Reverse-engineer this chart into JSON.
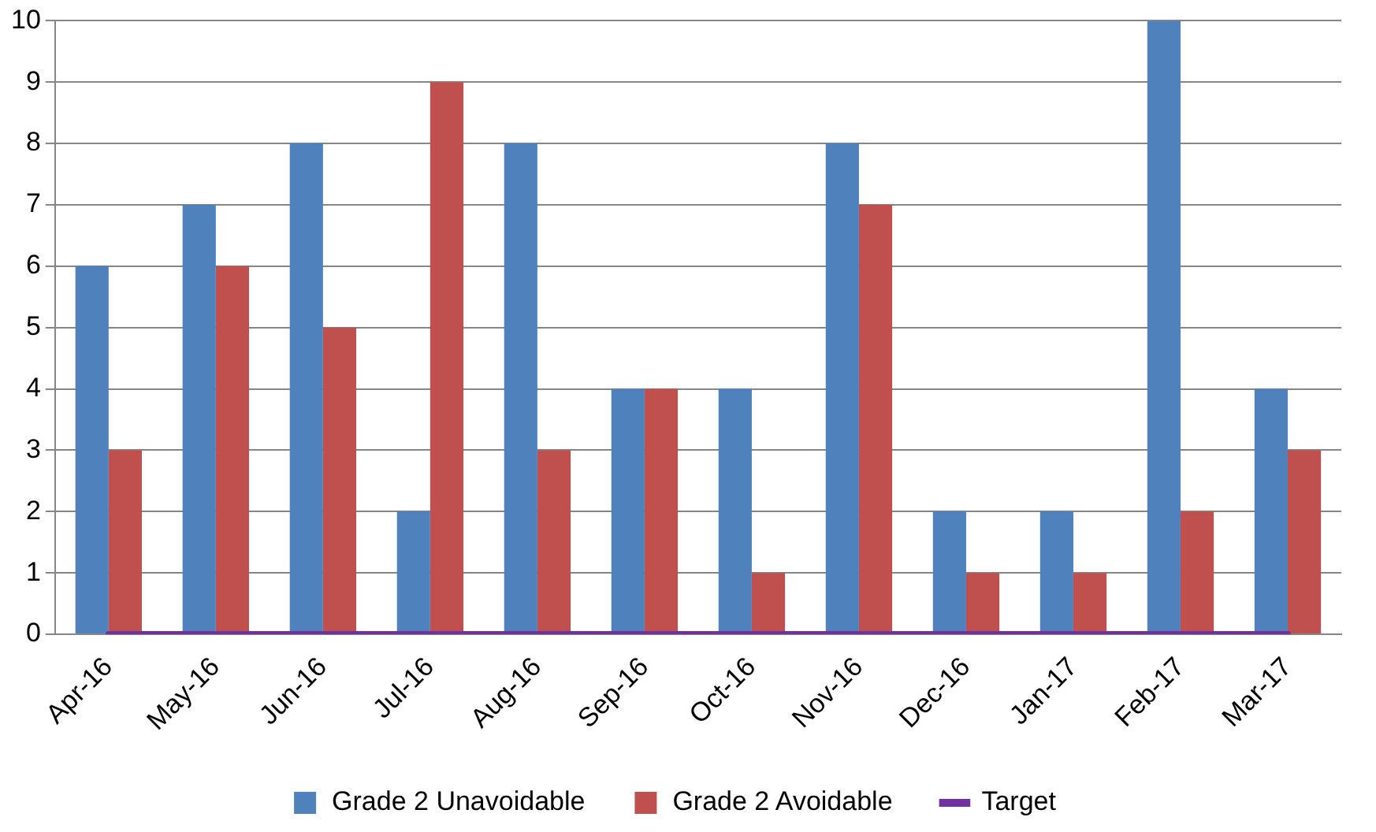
{
  "chart_data": {
    "type": "bar",
    "categories": [
      "Apr-16",
      "May-16",
      "Jun-16",
      "Jul-16",
      "Aug-16",
      "Sep-16",
      "Oct-16",
      "Nov-16",
      "Dec-16",
      "Jan-17",
      "Feb-17",
      "Mar-17"
    ],
    "series": [
      {
        "name": "Grade 2 Unavoidable",
        "color": "#4f81bd",
        "values": [
          6,
          7,
          8,
          2,
          8,
          4,
          4,
          8,
          2,
          2,
          10,
          4
        ]
      },
      {
        "name": "Grade 2 Avoidable",
        "color": "#c0504d",
        "values": [
          3,
          6,
          5,
          9,
          3,
          4,
          1,
          7,
          1,
          1,
          2,
          3
        ]
      },
      {
        "name": "Target",
        "type": "line",
        "color": "#7030a0",
        "values": [
          0,
          0,
          0,
          0,
          0,
          0,
          0,
          0,
          0,
          0,
          0,
          0
        ],
        "marker": "none",
        "line_style": "solid"
      }
    ],
    "ylim": [
      0,
      10
    ],
    "yticks": [
      0,
      1,
      2,
      3,
      4,
      5,
      6,
      7,
      8,
      9,
      10
    ],
    "grid": "y",
    "legend": "bottom"
  }
}
